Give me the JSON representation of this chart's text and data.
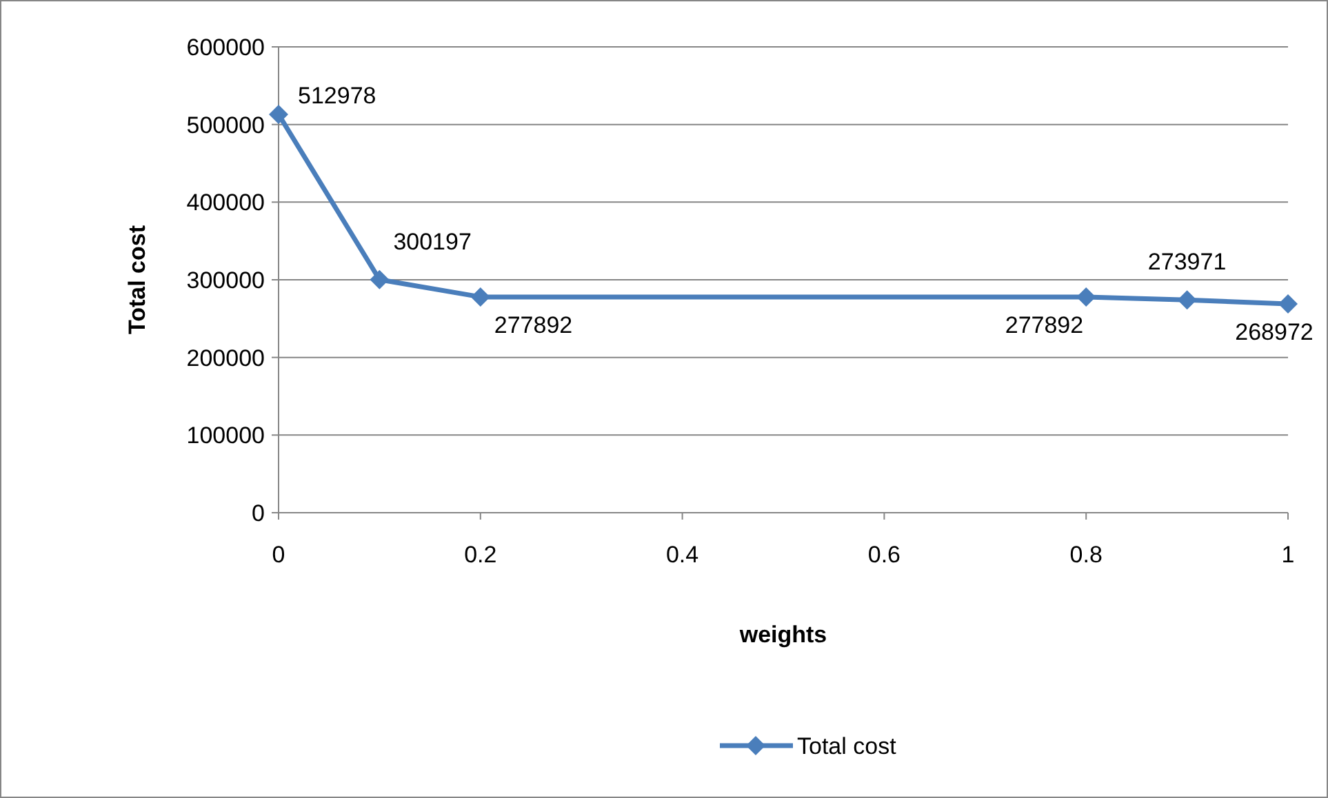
{
  "chart_data": {
    "type": "line",
    "xlabel": "weights",
    "ylabel": "Total cost",
    "x": [
      0,
      0.1,
      0.2,
      0.8,
      0.9,
      1
    ],
    "series": [
      {
        "name": "Total cost",
        "color": "#4a7ebb",
        "values": [
          512978,
          300197,
          277892,
          277892,
          273971,
          268972
        ]
      }
    ],
    "xlim": [
      0,
      1
    ],
    "xticks": [
      0,
      0.2,
      0.4,
      0.6,
      0.8,
      1
    ],
    "ylim": [
      0,
      600000
    ],
    "yticks": [
      0,
      100000,
      200000,
      300000,
      400000,
      500000,
      600000
    ],
    "grid": "y",
    "legend": "bottom",
    "marker": "diamond",
    "line_style": "solid",
    "data_labels": true
  }
}
